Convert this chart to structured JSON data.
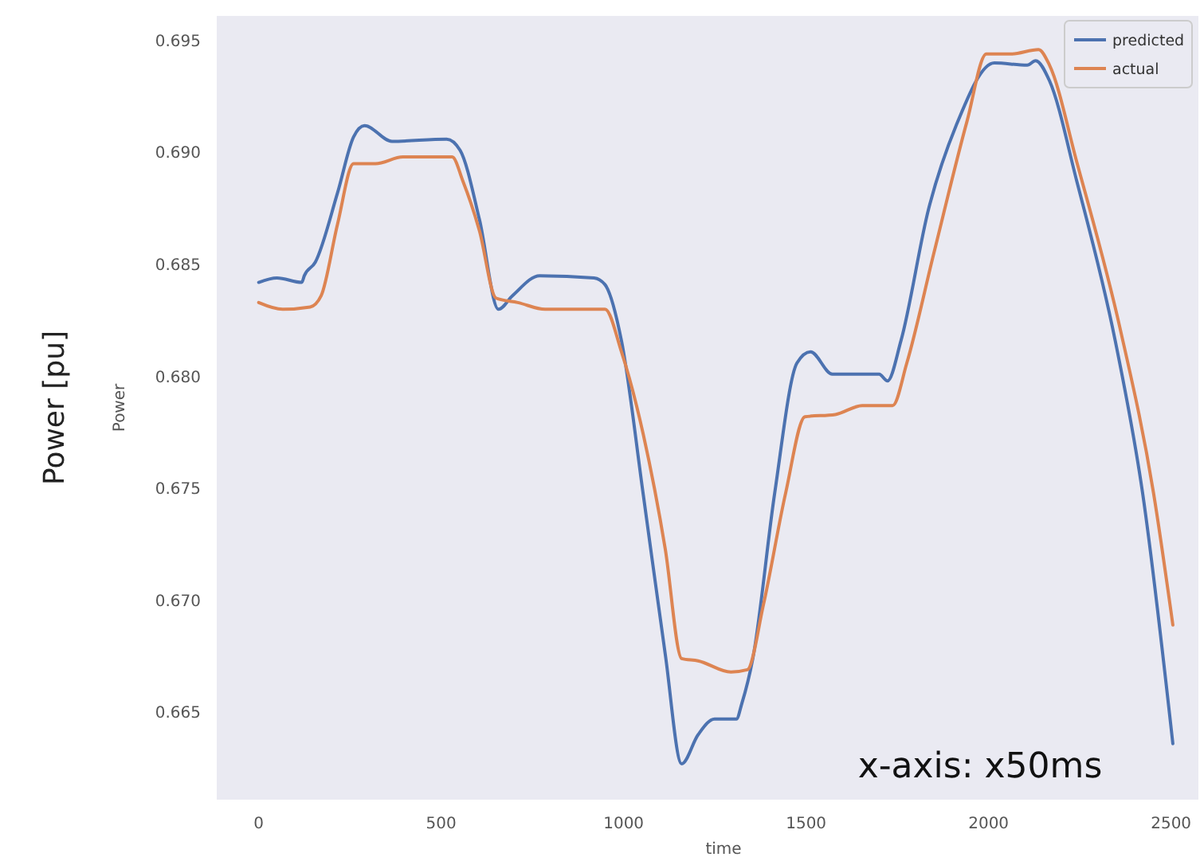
{
  "chart_data": {
    "type": "line",
    "xlabel": "time",
    "ylabel": "Power",
    "annotations": [
      "Power [pu]",
      "x-axis: x50ms"
    ],
    "xlim": [
      -115,
      2575
    ],
    "ylim": [
      0.6611,
      0.6961
    ],
    "xticks": [
      0,
      500,
      1000,
      1500,
      2000,
      2500
    ],
    "yticks": [
      0.665,
      {
        "value": 0.67,
        "label": "0.670"
      },
      0.675,
      {
        "value": 0.68,
        "label": "0.680"
      },
      0.685,
      {
        "value": 0.69,
        "label": "0.690"
      },
      0.695
    ],
    "grid": false,
    "legend": "top right",
    "marker": "none",
    "line_style": "solid",
    "series": [
      {
        "name": "predicted",
        "color": "#4c72b0",
        "x": [
          0,
          50,
          118,
          125,
          155,
          216,
          260,
          290,
          365,
          515,
          552,
          605,
          657,
          695,
          770,
          919,
          949,
          994,
          1054,
          1114,
          1159,
          1204,
          1249,
          1309,
          1324,
          1354,
          1414,
          1475,
          1512,
          1572,
          1700,
          1723,
          1760,
          1836,
          1911,
          2016,
          2106,
          2129,
          2167,
          2242,
          2347,
          2422,
          2505
        ],
        "values": [
          0.6842,
          0.6844,
          0.6842,
          0.6845,
          0.6851,
          0.6882,
          0.6907,
          0.6912,
          0.6905,
          0.6906,
          0.6901,
          0.687,
          0.683,
          0.6836,
          0.6845,
          0.6844,
          0.6841,
          0.6816,
          0.6747,
          0.6676,
          0.6627,
          0.664,
          0.6647,
          0.6647,
          0.6654,
          0.6674,
          0.6748,
          0.6806,
          0.6811,
          0.6801,
          0.6801,
          0.6798,
          0.6816,
          0.6875,
          0.6912,
          0.694,
          0.6939,
          0.6941,
          0.6932,
          0.6887,
          0.6816,
          0.6748,
          0.6636
        ]
      },
      {
        "name": "actual",
        "color": "#dd8452",
        "x": [
          0,
          66,
          141,
          171,
          216,
          260,
          320,
          395,
          530,
          560,
          605,
          650,
          710,
          785,
          949,
          994,
          1054,
          1114,
          1159,
          1204,
          1294,
          1339,
          1383,
          1444,
          1497,
          1580,
          1654,
          1737,
          1776,
          1850,
          1941,
          1994,
          2062,
          2137,
          2167,
          2243,
          2361,
          2452,
          2505
        ],
        "values": [
          0.6833,
          0.683,
          0.6831,
          0.6836,
          0.6868,
          0.6895,
          0.6895,
          0.6898,
          0.6898,
          0.6887,
          0.6865,
          0.6835,
          0.6833,
          0.683,
          0.683,
          0.6811,
          0.6774,
          0.6723,
          0.6674,
          0.6673,
          0.6668,
          0.6669,
          0.6698,
          0.6748,
          0.6782,
          0.6783,
          0.6787,
          0.6787,
          0.6806,
          0.6855,
          0.6914,
          0.6944,
          0.6944,
          0.6946,
          0.6939,
          0.6895,
          0.6821,
          0.6748,
          0.6689
        ]
      }
    ]
  }
}
